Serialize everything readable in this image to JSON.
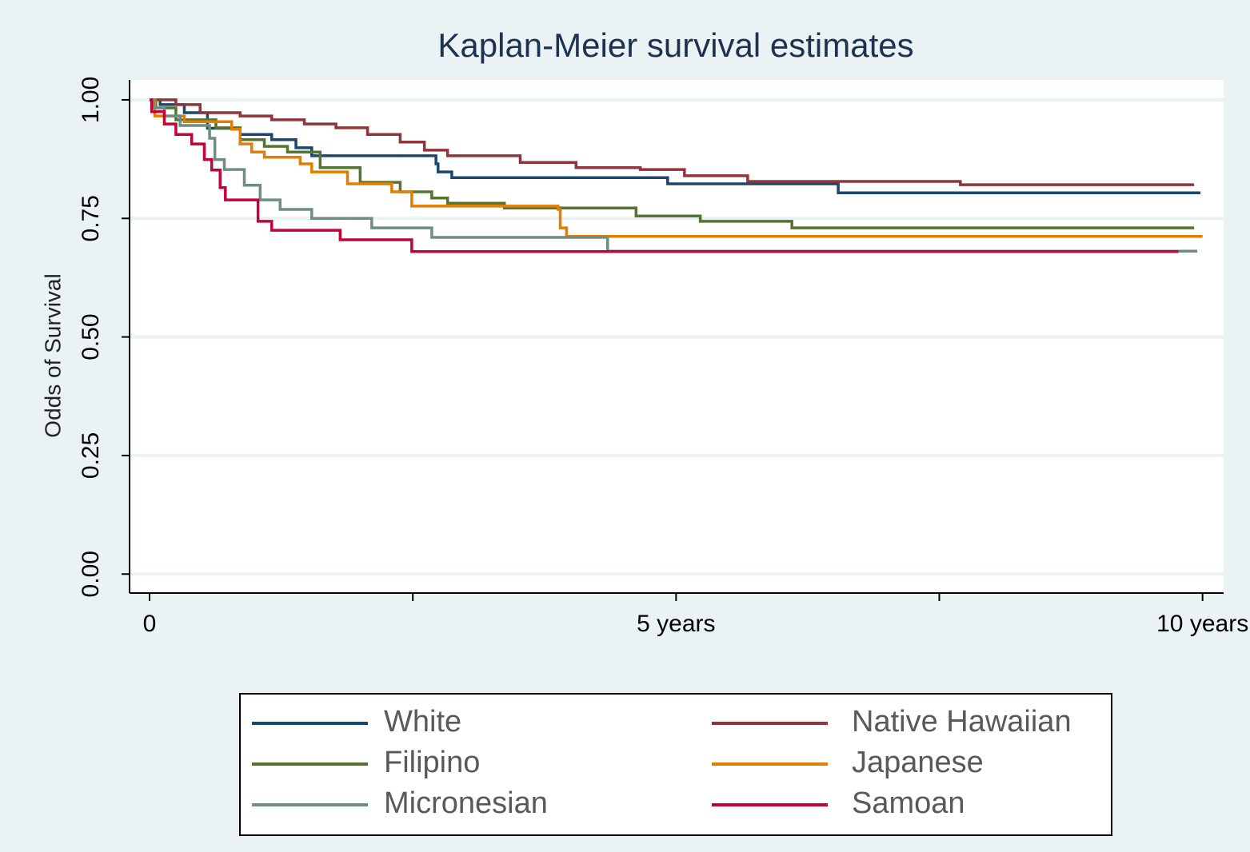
{
  "chart_data": {
    "type": "step",
    "title": "Kaplan-Meier survival estimates",
    "y_label": "Odds of Survival",
    "xlim": [
      -0.19,
      10.2
    ],
    "ylim": [
      -0.04,
      1.042
    ],
    "xticks": [
      0,
      {
        "value": 2.5,
        "label": null
      },
      {
        "value": 5,
        "label": "5 years"
      },
      {
        "value": 7.5,
        "label": null
      },
      {
        "value": 10,
        "label": "10 years"
      }
    ],
    "yticks": [
      {
        "value": 0,
        "label": "0.00"
      },
      {
        "value": 0.25,
        "label": "0.25"
      },
      {
        "value": 0.5,
        "label": "0.50"
      },
      {
        "value": 0.75,
        "label": "0.75"
      },
      {
        "value": 1,
        "label": "1.00"
      }
    ],
    "grid": true,
    "legend": "bottom",
    "series": [
      {
        "name": "White",
        "color": "#1a476f",
        "x": [
          0,
          0.1,
          0.33,
          0.55,
          0.86,
          1.16,
          1.39,
          1.54,
          2.72,
          2.74,
          2.87,
          4.92,
          6.54,
          9.98
        ],
        "values": [
          1.0,
          0.99,
          0.973,
          0.94,
          0.927,
          0.916,
          0.899,
          0.882,
          0.865,
          0.848,
          0.836,
          0.823,
          0.804,
          0.804
        ]
      },
      {
        "name": "Native Hawaiian",
        "color": "#90353b",
        "x": [
          0,
          0.25,
          0.48,
          0.86,
          1.16,
          1.47,
          1.77,
          2.07,
          2.38,
          2.61,
          2.83,
          3.52,
          4.05,
          4.66,
          5.08,
          5.68,
          7.7,
          9.92
        ],
        "values": [
          1.0,
          0.99,
          0.973,
          0.966,
          0.958,
          0.949,
          0.941,
          0.927,
          0.911,
          0.894,
          0.882,
          0.868,
          0.857,
          0.853,
          0.84,
          0.828,
          0.821,
          0.821
        ]
      },
      {
        "name": "Filipino",
        "color": "#55752f",
        "x": [
          0,
          0.06,
          0.25,
          0.63,
          0.86,
          1.09,
          1.31,
          1.62,
          2.0,
          2.38,
          2.68,
          2.83,
          3.37,
          4.62,
          5.23,
          6.1,
          9.92
        ],
        "values": [
          1.0,
          0.983,
          0.958,
          0.941,
          0.916,
          0.902,
          0.89,
          0.857,
          0.826,
          0.806,
          0.793,
          0.782,
          0.772,
          0.755,
          0.744,
          0.73,
          0.73
        ]
      },
      {
        "name": "Japanese",
        "color": "#e37e00",
        "x": [
          0,
          0.05,
          0.33,
          0.78,
          0.86,
          0.97,
          1.09,
          1.43,
          1.54,
          1.88,
          2.3,
          2.49,
          3.88,
          3.9,
          3.96,
          10.0
        ],
        "values": [
          1.0,
          0.966,
          0.954,
          0.938,
          0.907,
          0.89,
          0.879,
          0.865,
          0.848,
          0.823,
          0.806,
          0.776,
          0.769,
          0.73,
          0.712,
          0.712
        ]
      },
      {
        "name": "Micronesian",
        "color": "#6e8e84",
        "x": [
          0,
          0.04,
          0.14,
          0.29,
          0.57,
          0.62,
          0.71,
          0.9,
          1.05,
          1.24,
          1.54,
          2.11,
          2.68,
          4.35,
          9.95
        ],
        "values": [
          1.0,
          0.983,
          0.966,
          0.946,
          0.919,
          0.874,
          0.853,
          0.82,
          0.789,
          0.769,
          0.75,
          0.73,
          0.71,
          0.681,
          0.681
        ]
      },
      {
        "name": "Samoan",
        "color": "#c10534",
        "x": [
          0,
          0.02,
          0.14,
          0.25,
          0.4,
          0.52,
          0.59,
          0.67,
          0.72,
          1.03,
          1.16,
          1.81,
          2.49,
          9.77
        ],
        "values": [
          1.0,
          0.975,
          0.949,
          0.927,
          0.907,
          0.874,
          0.852,
          0.815,
          0.789,
          0.744,
          0.725,
          0.705,
          0.68,
          0.68
        ]
      }
    ]
  }
}
